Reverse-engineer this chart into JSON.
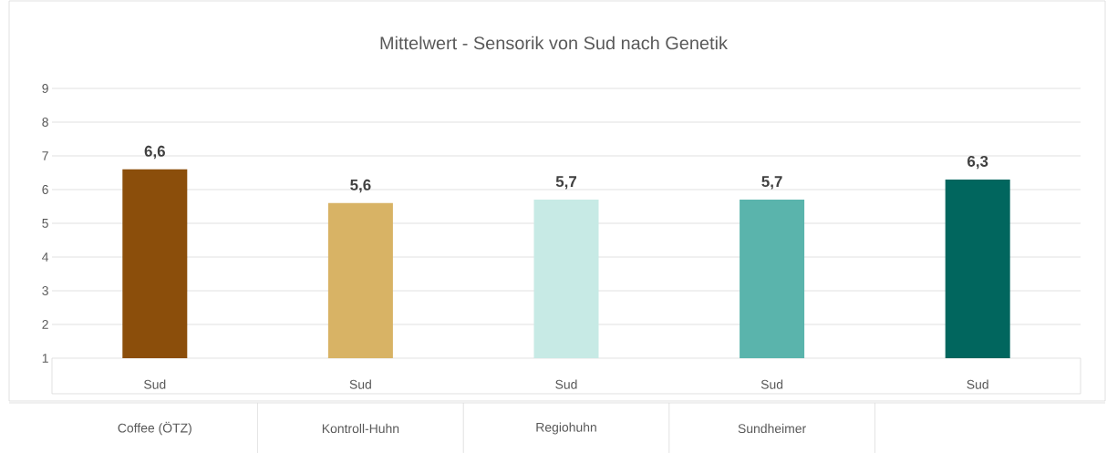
{
  "chart_data": {
    "type": "bar",
    "title": "Mittelwert - Sensorik von Sud nach Genetik",
    "categories": [
      "Coffee (ÖTZ)",
      "Kontroll-Huhn",
      "Regiohuhn",
      "Sundheimer",
      null
    ],
    "series": [
      {
        "name": "Sud",
        "values": [
          6.6,
          5.6,
          5.7,
          5.7,
          6.3
        ],
        "colors": [
          "#8b4e0b",
          "#d8b365",
          "#c7eae5",
          "#5ab4ac",
          "#01665e"
        ],
        "value_labels": [
          "6,6",
          "5,6",
          "5,7",
          "5,7",
          "6,3"
        ]
      }
    ],
    "ylim": [
      1,
      9
    ],
    "yticks": [
      1,
      2,
      3,
      4,
      5,
      6,
      7,
      8,
      9
    ],
    "grid": "y"
  }
}
